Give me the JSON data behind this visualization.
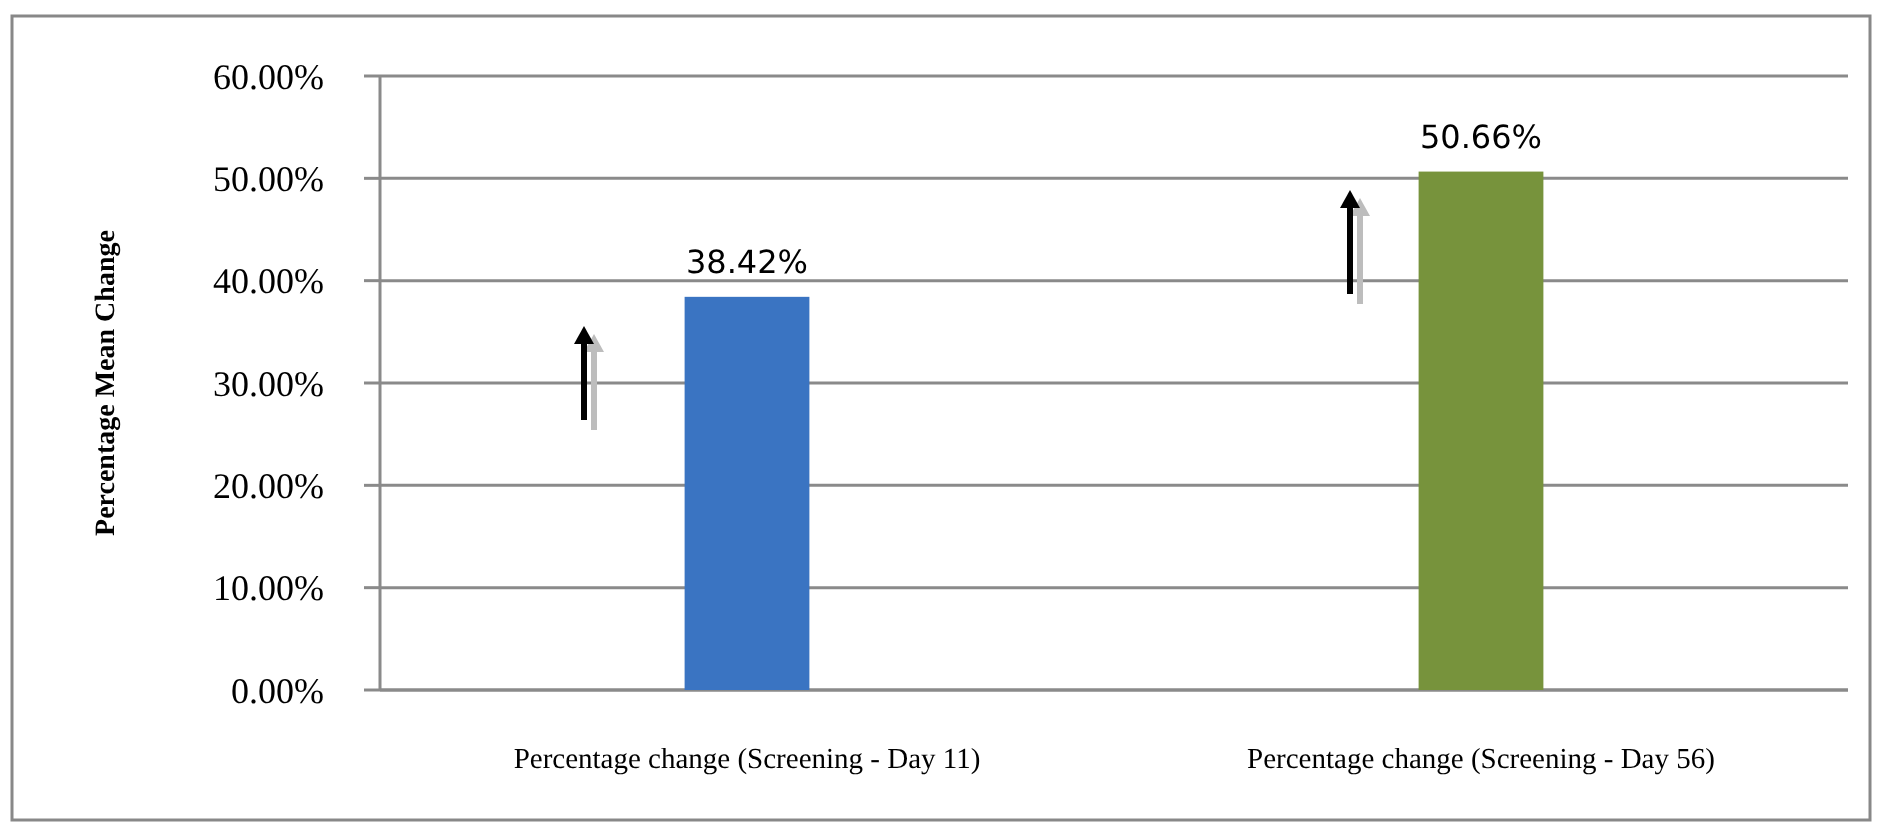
{
  "chart_data": {
    "type": "bar",
    "ylabel": "Percentage Mean Change",
    "categories": [
      "Percentage change (Screening - Day 11)",
      "Percentage change (Screening - Day 56)"
    ],
    "values": [
      38.42,
      50.66
    ],
    "colors": [
      "#3a74c2",
      "#77933c"
    ],
    "value_labels": [
      "38.42%",
      "50.66%"
    ],
    "ylim": [
      0,
      60
    ],
    "yticks": [
      {
        "value": 0,
        "label": "0.00%"
      },
      {
        "value": 10,
        "label": "10.00%"
      },
      {
        "value": 20,
        "label": "20.00%"
      },
      {
        "value": 30,
        "label": "30.00%"
      },
      {
        "value": 40,
        "label": "40.00%"
      },
      {
        "value": 50,
        "label": "50.00%"
      },
      {
        "value": 60,
        "label": "60.00%"
      }
    ],
    "grid": "y"
  }
}
